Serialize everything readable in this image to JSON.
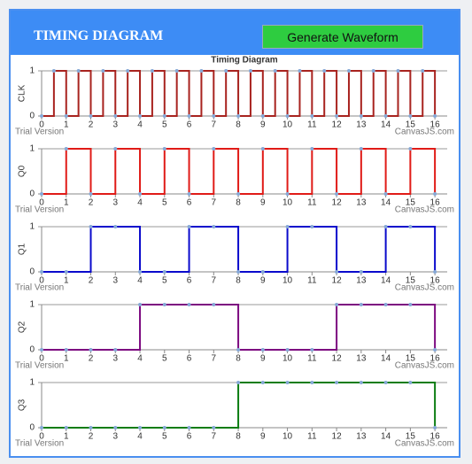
{
  "header": {
    "title": "TIMING DIAGRAM",
    "button": "Generate Waveform"
  },
  "credits": [
    "Trial Version",
    "CanvasJS.com"
  ],
  "marker_color": "#86a8d6",
  "chart_data": [
    {
      "type": "stepLine",
      "title": "Timing Diagram",
      "y_label": "CLK",
      "color": "#a8231f",
      "x": [
        0,
        0.5,
        1,
        1.5,
        2,
        2.5,
        3,
        3.5,
        4,
        4.5,
        5,
        5.5,
        6,
        6.5,
        7,
        7.5,
        8,
        8.5,
        9,
        9.5,
        10,
        10.5,
        11,
        11.5,
        12,
        12.5,
        13,
        13.5,
        14,
        14.5,
        15,
        15.5,
        16
      ],
      "values": [
        0,
        1,
        0,
        1,
        0,
        1,
        0,
        1,
        0,
        1,
        0,
        1,
        0,
        1,
        0,
        1,
        0,
        1,
        0,
        1,
        0,
        1,
        0,
        1,
        0,
        1,
        0,
        1,
        0,
        1,
        0,
        1,
        0
      ],
      "xlim": [
        0,
        16.5
      ],
      "xticks": [
        0,
        1,
        2,
        3,
        4,
        5,
        6,
        7,
        8,
        9,
        10,
        11,
        12,
        13,
        14,
        15,
        16
      ],
      "ylim": [
        0,
        1
      ],
      "yticks": [
        0,
        1
      ],
      "grid": true
    },
    {
      "type": "stepLine",
      "y_label": "Q0",
      "color": "#e01b17",
      "x": [
        0,
        1,
        2,
        3,
        4,
        5,
        6,
        7,
        8,
        9,
        10,
        11,
        12,
        13,
        14,
        15,
        16
      ],
      "values": [
        0,
        1,
        0,
        1,
        0,
        1,
        0,
        1,
        0,
        1,
        0,
        1,
        0,
        1,
        0,
        1,
        0
      ],
      "xlim": [
        0,
        16.5
      ],
      "xticks": [
        0,
        1,
        2,
        3,
        4,
        5,
        6,
        7,
        8,
        9,
        10,
        11,
        12,
        13,
        14,
        15,
        16
      ],
      "ylim": [
        0,
        1
      ],
      "yticks": [
        0,
        1
      ],
      "grid": true
    },
    {
      "type": "stepLine",
      "y_label": "Q1",
      "color": "#0a0acc",
      "x": [
        0,
        1,
        2,
        3,
        4,
        5,
        6,
        7,
        8,
        9,
        10,
        11,
        12,
        13,
        14,
        15,
        16
      ],
      "values": [
        0,
        0,
        1,
        1,
        0,
        0,
        1,
        1,
        0,
        0,
        1,
        1,
        0,
        0,
        1,
        1,
        0
      ],
      "xlim": [
        0,
        16.5
      ],
      "xticks": [
        0,
        1,
        2,
        3,
        4,
        5,
        6,
        7,
        8,
        9,
        10,
        11,
        12,
        13,
        14,
        15,
        16
      ],
      "ylim": [
        0,
        1
      ],
      "yticks": [
        0,
        1
      ],
      "grid": true
    },
    {
      "type": "stepLine",
      "y_label": "Q2",
      "color": "#7d0a80",
      "x": [
        0,
        1,
        2,
        3,
        4,
        5,
        6,
        7,
        8,
        9,
        10,
        11,
        12,
        13,
        14,
        15,
        16
      ],
      "values": [
        0,
        0,
        0,
        0,
        1,
        1,
        1,
        1,
        0,
        0,
        0,
        0,
        1,
        1,
        1,
        1,
        0
      ],
      "xlim": [
        0,
        16.5
      ],
      "xticks": [
        0,
        1,
        2,
        3,
        4,
        5,
        6,
        7,
        8,
        9,
        10,
        11,
        12,
        13,
        14,
        15,
        16
      ],
      "ylim": [
        0,
        1
      ],
      "yticks": [
        0,
        1
      ],
      "grid": true
    },
    {
      "type": "stepLine",
      "y_label": "Q3",
      "color": "#0b7d12",
      "x": [
        0,
        1,
        2,
        3,
        4,
        5,
        6,
        7,
        8,
        9,
        10,
        11,
        12,
        13,
        14,
        15,
        16
      ],
      "values": [
        0,
        0,
        0,
        0,
        0,
        0,
        0,
        0,
        1,
        1,
        1,
        1,
        1,
        1,
        1,
        1,
        0
      ],
      "xlim": [
        0,
        16.5
      ],
      "xticks": [
        0,
        1,
        2,
        3,
        4,
        5,
        6,
        7,
        8,
        9,
        10,
        11,
        12,
        13,
        14,
        15,
        16
      ],
      "ylim": [
        0,
        1
      ],
      "yticks": [
        0,
        1
      ],
      "grid": true
    }
  ]
}
